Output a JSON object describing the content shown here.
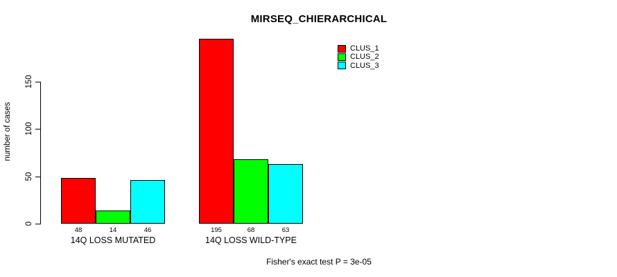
{
  "chart_data": {
    "type": "bar",
    "title": "MIRSEQ_CHIERARCHICAL",
    "ylabel": "number of cases",
    "xlabel": "",
    "categories": [
      "14Q LOSS MUTATED",
      "14Q LOSS WILD-TYPE"
    ],
    "series": [
      {
        "name": "CLUS_1",
        "color": "#ff0000",
        "values": [
          48,
          195
        ]
      },
      {
        "name": "CLUS_2",
        "color": "#00ff00",
        "values": [
          14,
          68
        ]
      },
      {
        "name": "CLUS_3",
        "color": "#00ffff",
        "values": [
          46,
          63
        ]
      }
    ],
    "yticks": [
      0,
      50,
      100,
      150
    ],
    "ylim": [
      0,
      195
    ],
    "grid": false,
    "bar_value_labels": true,
    "legend_position": "top-right",
    "annotation": "Fisher's exact test P = 3e-05"
  },
  "colors": {
    "background": "#ffffff",
    "axis": "#000000",
    "text": "#000000"
  }
}
